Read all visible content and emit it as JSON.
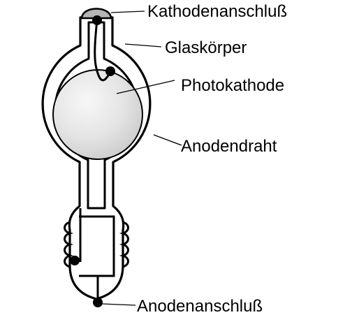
{
  "colors": {
    "stroke": "#000000",
    "background": "#ffffff",
    "cathode_fill": "#e4e4e4",
    "cap_fill": "#b5b5b5"
  },
  "labels": {
    "cathode_terminal": "Kathodenanschluß",
    "glass_body": "Glaskörper",
    "photocathode": "Photokathode",
    "anode_wire": "Anodendraht",
    "anode_terminal": "Anodenanschluß"
  }
}
